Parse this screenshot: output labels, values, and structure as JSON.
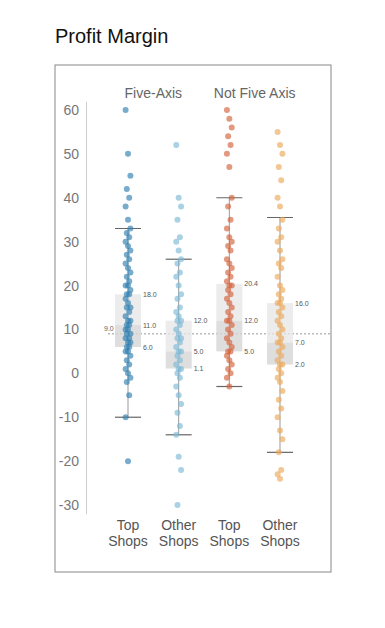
{
  "chart_data": {
    "type": "box",
    "title": "Profit Margin",
    "ylim": [
      -32,
      62
    ],
    "yticks": [
      -30,
      -20,
      -10,
      0,
      10,
      20,
      30,
      40,
      50,
      60
    ],
    "reference": {
      "value": 9,
      "label": "9.0"
    },
    "groups": [
      {
        "name": "Five-Axis",
        "boxes": [
          {
            "category": "Top Shops",
            "color": "#2f7fb0",
            "whisker_low": -10,
            "q1": 6,
            "median": 11,
            "q3": 18,
            "whisker_high": 33,
            "value_labels": {
              "q1": "6.0",
              "median": "11.0",
              "q3": "18.0"
            },
            "points": [
              60,
              50,
              45,
              42,
              40,
              38,
              35,
              33,
              32,
              31,
              30,
              29,
              28,
              27,
              26,
              25,
              24,
              23,
              22,
              21,
              20,
              20,
              19,
              18,
              18,
              17,
              16,
              15,
              15,
              14,
              13,
              12,
              12,
              11,
              11,
              10,
              10,
              9,
              9,
              8,
              8,
              7,
              7,
              6,
              6,
              5,
              5,
              4,
              3,
              2,
              1,
              0,
              -1,
              -2,
              -5,
              -10,
              -20
            ]
          },
          {
            "category": "Other Shops",
            "color": "#7db9d6",
            "whisker_low": -14,
            "q1": 1.1,
            "median": 5,
            "q3": 12,
            "whisker_high": 26,
            "value_labels": {
              "q1": "1.1",
              "median": "5.0",
              "q3": "12.0"
            },
            "points": [
              52,
              40,
              38,
              35,
              31,
              30,
              28,
              26,
              25,
              23,
              22,
              20,
              18,
              17,
              15,
              14,
              13,
              12,
              12,
              11,
              10,
              9,
              8,
              8,
              7,
              6,
              5,
              5,
              4,
              3,
              2,
              1,
              1,
              0,
              -1,
              -3,
              -5,
              -7,
              -9,
              -12,
              -14,
              -19,
              -22,
              -30
            ]
          }
        ]
      },
      {
        "name": "Not Five Axis",
        "boxes": [
          {
            "category": "Top Shops",
            "color": "#d4623a",
            "whisker_low": -3,
            "q1": 5,
            "median": 12,
            "q3": 20.4,
            "whisker_high": 40,
            "value_labels": {
              "q1": "5.0",
              "median": "12.0",
              "q3": "20.4"
            },
            "points": [
              60,
              58,
              56,
              54,
              52,
              50,
              47,
              40,
              38,
              35,
              33,
              31,
              30,
              29,
              28,
              26,
              25,
              24,
              23,
              22,
              21,
              20,
              20,
              19,
              18,
              17,
              16,
              15,
              14,
              13,
              12,
              12,
              11,
              10,
              9,
              8,
              7,
              6,
              5,
              5,
              4,
              3,
              2,
              1,
              0,
              -1,
              -3
            ]
          },
          {
            "category": "Other Shops",
            "color": "#eda95a",
            "whisker_low": -18,
            "q1": 2,
            "median": 7,
            "q3": 16,
            "whisker_high": 35.5,
            "value_labels": {
              "q1": "2.0",
              "median": "7.0",
              "q3": "16.0"
            },
            "points": [
              55,
              52,
              50,
              47,
              44,
              40,
              38,
              35,
              33,
              31,
              30,
              28,
              26,
              25,
              24,
              22,
              20,
              19,
              18,
              17,
              16,
              16,
              15,
              14,
              13,
              12,
              11,
              10,
              9,
              8,
              7,
              7,
              6,
              5,
              4,
              3,
              2,
              2,
              1,
              0,
              -1,
              -2,
              -4,
              -6,
              -8,
              -10,
              -13,
              -15,
              -18,
              -22,
              -23,
              -24
            ]
          }
        ]
      }
    ]
  }
}
